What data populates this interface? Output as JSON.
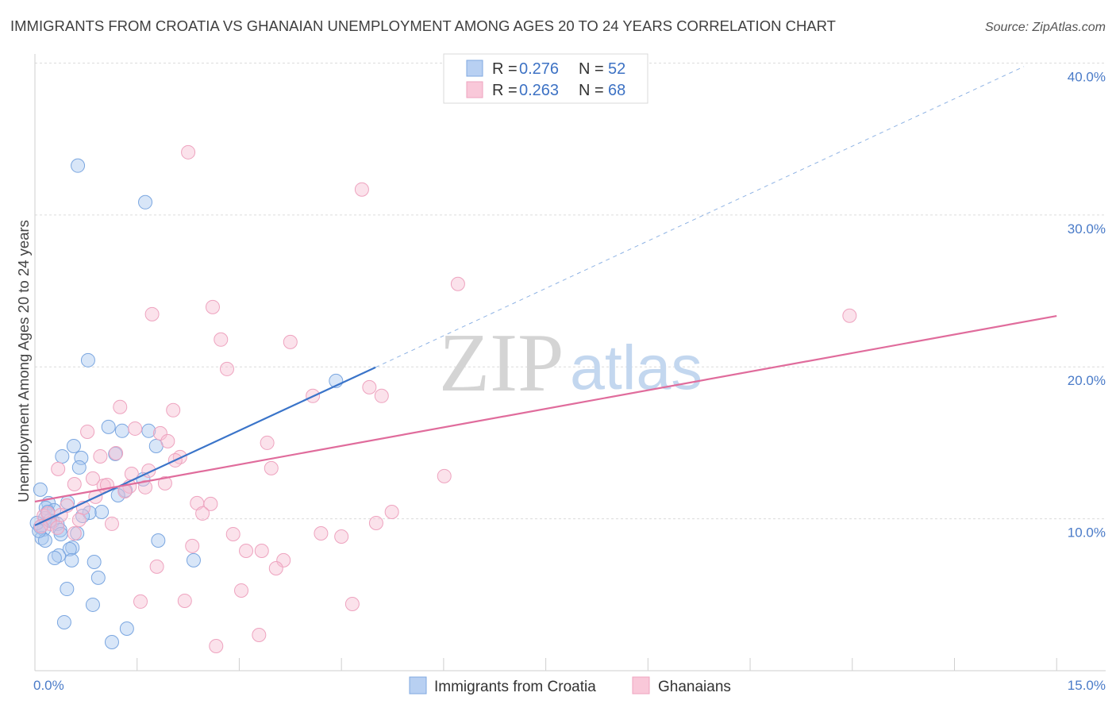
{
  "chart_data": {
    "type": "scatter",
    "title": "IMMIGRANTS FROM CROATIA VS GHANAIAN UNEMPLOYMENT AMONG AGES 20 TO 24 YEARS CORRELATION CHART",
    "source": "Source: ZipAtlas.com",
    "ylabel": "Unemployment Among Ages 20 to 24 years",
    "xlim": [
      0,
      15.72
    ],
    "ylim": [
      0,
      40.6
    ],
    "x_tick_labels": [
      "0.0%",
      "15.0%"
    ],
    "x_ticks": [
      1.5,
      3,
      4.5,
      6,
      7.5,
      9,
      10.5,
      12,
      13.5,
      15
    ],
    "y_ticks": [
      {
        "value": 10,
        "label": "10.0%"
      },
      {
        "value": 20,
        "label": "20.0%"
      },
      {
        "value": 30,
        "label": "30.0%"
      },
      {
        "value": 40,
        "label": "40.0%"
      }
    ],
    "grid": true,
    "legend_position": "top-center",
    "series": [
      {
        "name": "Immigrants from Croatia",
        "r": "0.276",
        "n": "52",
        "color": "#7aa6e0",
        "fill": "#a8c7f0",
        "line_color": "#3a74c9",
        "dash_color": "#8fb3e4",
        "trend": {
          "intercept": 9.57,
          "slope": 2.08,
          "solid_to_x": 5.0,
          "dashed_to_x": 14.52
        },
        "points": [
          [
            0.63,
            33.25
          ],
          [
            1.62,
            30.84
          ],
          [
            0.78,
            20.44
          ],
          [
            4.42,
            19.08
          ],
          [
            1.08,
            16.05
          ],
          [
            1.28,
            15.79
          ],
          [
            1.67,
            15.79
          ],
          [
            1.78,
            14.79
          ],
          [
            0.57,
            14.79
          ],
          [
            0.4,
            14.11
          ],
          [
            0.68,
            14.01
          ],
          [
            1.18,
            14.27
          ],
          [
            0.65,
            13.38
          ],
          [
            0.08,
            11.92
          ],
          [
            1.59,
            12.6
          ],
          [
            1.33,
            11.87
          ],
          [
            1.22,
            11.55
          ],
          [
            0.2,
            11.03
          ],
          [
            0.48,
            11.08
          ],
          [
            0.16,
            10.72
          ],
          [
            0.98,
            10.45
          ],
          [
            0.8,
            10.4
          ],
          [
            0.28,
            10.56
          ],
          [
            0.7,
            10.19
          ],
          [
            0.15,
            10.04
          ],
          [
            0.26,
            9.83
          ],
          [
            0.33,
            9.67
          ],
          [
            0.08,
            9.46
          ],
          [
            0.37,
            9.25
          ],
          [
            0.13,
            9.3
          ],
          [
            0.62,
            9.04
          ],
          [
            0.38,
            8.99
          ],
          [
            0.1,
            8.73
          ],
          [
            0.15,
            8.57
          ],
          [
            1.81,
            8.57
          ],
          [
            0.55,
            8.1
          ],
          [
            0.51,
            8.0
          ],
          [
            0.35,
            7.58
          ],
          [
            0.29,
            7.42
          ],
          [
            0.54,
            7.27
          ],
          [
            0.87,
            7.16
          ],
          [
            2.33,
            7.27
          ],
          [
            0.93,
            6.12
          ],
          [
            0.47,
            5.38
          ],
          [
            0.85,
            4.34
          ],
          [
            0.43,
            3.19
          ],
          [
            1.35,
            2.77
          ],
          [
            1.13,
            1.88
          ],
          [
            0.03,
            9.72
          ],
          [
            0.22,
            9.88
          ],
          [
            0.19,
            10.45
          ],
          [
            0.06,
            9.2
          ]
        ]
      },
      {
        "name": "Ghanaians",
        "r": "0.263",
        "n": "68",
        "color": "#eea3bf",
        "fill": "#f7bfd3",
        "line_color": "#e06c9c",
        "dash_color": "#e06c9c",
        "trend": {
          "intercept": 11.13,
          "slope": 0.815,
          "solid_to_x": 15.0,
          "dashed_to_x": 15.0
        },
        "points": [
          [
            2.25,
            34.13
          ],
          [
            4.8,
            31.68
          ],
          [
            6.21,
            25.46
          ],
          [
            11.96,
            23.37
          ],
          [
            2.61,
            23.94
          ],
          [
            1.72,
            23.47
          ],
          [
            2.73,
            21.8
          ],
          [
            3.75,
            21.64
          ],
          [
            2.82,
            19.86
          ],
          [
            4.91,
            18.66
          ],
          [
            5.09,
            18.09
          ],
          [
            4.08,
            18.09
          ],
          [
            1.25,
            17.36
          ],
          [
            2.03,
            17.15
          ],
          [
            0.77,
            15.73
          ],
          [
            1.47,
            15.94
          ],
          [
            1.84,
            15.63
          ],
          [
            1.95,
            15.11
          ],
          [
            3.41,
            15.0
          ],
          [
            0.96,
            14.11
          ],
          [
            1.19,
            14.32
          ],
          [
            2.13,
            14.06
          ],
          [
            2.06,
            13.85
          ],
          [
            0.34,
            13.28
          ],
          [
            1.67,
            13.17
          ],
          [
            3.47,
            13.33
          ],
          [
            1.42,
            12.96
          ],
          [
            6.01,
            12.81
          ],
          [
            0.58,
            12.28
          ],
          [
            1.91,
            12.34
          ],
          [
            0.85,
            12.65
          ],
          [
            1.01,
            12.18
          ],
          [
            1.06,
            12.23
          ],
          [
            1.39,
            12.13
          ],
          [
            1.62,
            12.08
          ],
          [
            1.32,
            11.81
          ],
          [
            0.89,
            11.45
          ],
          [
            2.38,
            11.03
          ],
          [
            2.58,
            10.98
          ],
          [
            0.47,
            10.87
          ],
          [
            0.71,
            10.72
          ],
          [
            2.46,
            10.35
          ],
          [
            5.24,
            10.45
          ],
          [
            0.38,
            10.25
          ],
          [
            0.13,
            10.19
          ],
          [
            0.65,
            9.93
          ],
          [
            1.13,
            9.67
          ],
          [
            5.01,
            9.72
          ],
          [
            0.22,
            9.67
          ],
          [
            0.09,
            9.51
          ],
          [
            0.33,
            9.41
          ],
          [
            0.58,
            9.04
          ],
          [
            2.91,
            8.99
          ],
          [
            4.2,
            9.04
          ],
          [
            4.5,
            8.83
          ],
          [
            2.31,
            8.21
          ],
          [
            3.1,
            7.89
          ],
          [
            3.33,
            7.89
          ],
          [
            3.65,
            7.27
          ],
          [
            3.54,
            6.74
          ],
          [
            1.79,
            6.85
          ],
          [
            3.03,
            5.28
          ],
          [
            1.55,
            4.55
          ],
          [
            2.2,
            4.6
          ],
          [
            4.66,
            4.39
          ],
          [
            3.29,
            2.35
          ],
          [
            2.66,
            1.62
          ],
          [
            0.19,
            10.35
          ]
        ]
      }
    ]
  },
  "legend": {
    "r_label": "R =",
    "n_label": "N ="
  },
  "watermark": {
    "zip": "ZIP",
    "atlas": "atlas"
  }
}
